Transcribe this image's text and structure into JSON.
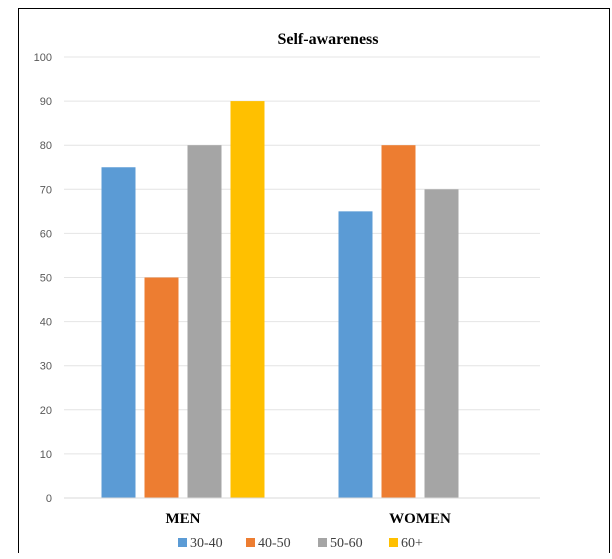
{
  "chart_data": {
    "type": "bar",
    "title": "Self-awareness",
    "categories": [
      "MEN",
      "WOMEN"
    ],
    "series": [
      {
        "name": "30-40",
        "color": "#5b9bd5",
        "values": [
          75,
          65
        ]
      },
      {
        "name": "40-50",
        "color": "#ed7d31",
        "values": [
          50,
          80
        ]
      },
      {
        "name": "50-60",
        "color": "#a5a5a5",
        "values": [
          80,
          70
        ]
      },
      {
        "name": "60+",
        "color": "#ffc000",
        "values": [
          90,
          null
        ]
      }
    ],
    "ylim": [
      0,
      100
    ],
    "yticks": [
      0,
      10,
      20,
      30,
      40,
      50,
      60,
      70,
      80,
      90,
      100
    ],
    "grid": true,
    "legend": "bottom"
  }
}
